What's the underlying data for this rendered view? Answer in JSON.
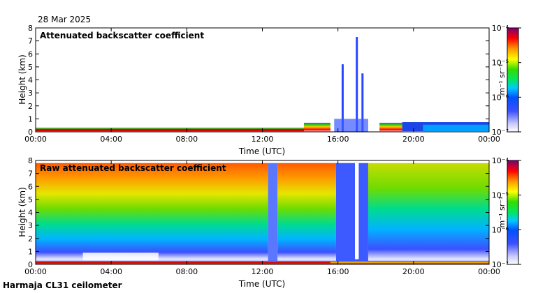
{
  "date": "28 Mar 2025",
  "footer": "Harmaja CL31 ceilometer",
  "chart_data": [
    {
      "type": "heatmap",
      "title": "Attenuated backscatter coefficient",
      "xlabel": "Time (UTC)",
      "ylabel": "Height (km)",
      "xticks": [
        "00:00",
        "04:00",
        "08:00",
        "12:00",
        "16:00",
        "20:00",
        "00:00"
      ],
      "xlim_hours": [
        0,
        24
      ],
      "ylim": [
        0,
        8
      ],
      "yticks": [
        0,
        1,
        2,
        3,
        4,
        5,
        6,
        7,
        8
      ],
      "colorbar": {
        "scale": "log",
        "min": 1e-07,
        "max": 0.0001,
        "ticks": [
          "10⁻⁷",
          "10⁻⁶",
          "10⁻⁵",
          "10⁻⁴"
        ],
        "label": "m⁻¹ sr⁻¹"
      }
    },
    {
      "type": "heatmap",
      "title": "Raw attenuated backscatter coefficient",
      "xlabel": "Time (UTC)",
      "ylabel": "Height (km)",
      "xticks": [
        "00:00",
        "04:00",
        "08:00",
        "12:00",
        "16:00",
        "20:00",
        "00:00"
      ],
      "xlim_hours": [
        0,
        24
      ],
      "ylim": [
        0,
        8
      ],
      "yticks": [
        0,
        1,
        2,
        3,
        4,
        5,
        6,
        7,
        8
      ],
      "colorbar": {
        "scale": "log",
        "min": 1e-07,
        "max": 0.0001,
        "ticks": [
          "10⁻⁷",
          "10⁻⁶",
          "10⁻⁵",
          "10⁻⁴"
        ],
        "label": "m⁻¹ sr⁻¹"
      }
    }
  ]
}
